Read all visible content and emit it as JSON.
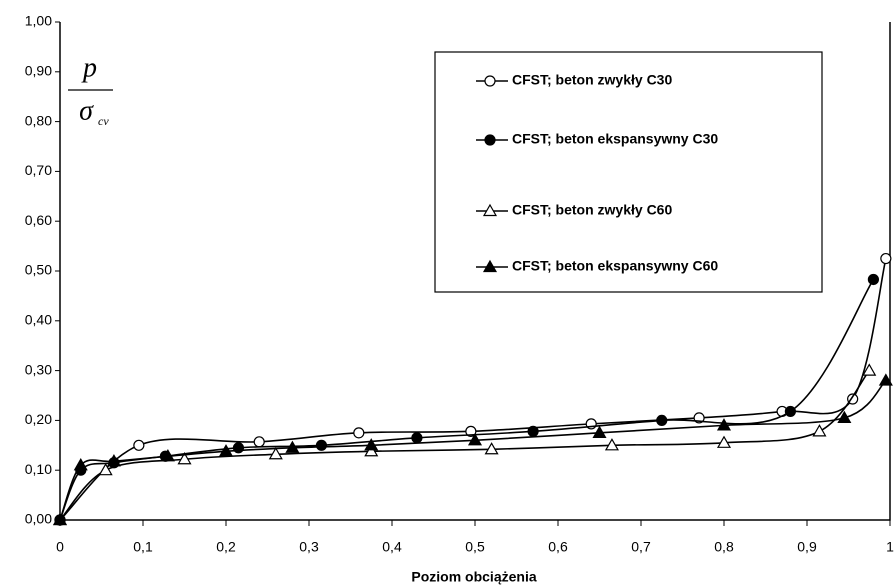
{
  "chart_data": {
    "type": "line",
    "x_label": "Poziom obciążenia",
    "y_label": {
      "numerator": "p",
      "denominator": "σ",
      "subscript": "cv"
    },
    "xlim": [
      0,
      1
    ],
    "ylim": [
      0,
      1
    ],
    "xticks": [
      0,
      {
        "value": 0.1,
        "label": "0,1"
      },
      {
        "value": 0.2,
        "label": "0,2"
      },
      {
        "value": 0.3,
        "label": "0,3"
      },
      {
        "value": 0.4,
        "label": "0,4"
      },
      {
        "value": 0.5,
        "label": "0,5"
      },
      {
        "value": 0.6,
        "label": "0,6"
      },
      {
        "value": 0.7,
        "label": "0,7"
      },
      {
        "value": 0.8,
        "label": "0,8"
      },
      {
        "value": 0.9,
        "label": "0,9"
      },
      1
    ],
    "yticks": [
      {
        "value": 0,
        "label": "0,00"
      },
      {
        "value": 0.1,
        "label": "0,10"
      },
      {
        "value": 0.2,
        "label": "0,20"
      },
      {
        "value": 0.3,
        "label": "0,30"
      },
      {
        "value": 0.4,
        "label": "0,40"
      },
      {
        "value": 0.5,
        "label": "0,50"
      },
      {
        "value": 0.6,
        "label": "0,60"
      },
      {
        "value": 0.7,
        "label": "0,70"
      },
      {
        "value": 0.8,
        "label": "0,80"
      },
      {
        "value": 0.9,
        "label": "0,90"
      },
      {
        "value": 1,
        "label": "1,00"
      }
    ],
    "series": [
      {
        "name": "CFST; beton zwykły C30",
        "color": "#000000",
        "marker": "circle-open",
        "x": [
          0,
          0.095,
          0.24,
          0.36,
          0.495,
          0.64,
          0.77,
          0.87,
          0.955,
          0.995
        ],
        "values": [
          0,
          0.15,
          0.157,
          0.175,
          0.178,
          0.193,
          0.205,
          0.218,
          0.243,
          0.525
        ]
      },
      {
        "name": "CFST; beton ekspansywny C30",
        "color": "#000000",
        "marker": "circle-filled",
        "x": [
          0,
          0.025,
          0.065,
          0.127,
          0.215,
          0.315,
          0.43,
          0.57,
          0.725,
          0.88,
          0.98
        ],
        "values": [
          0,
          0.1,
          0.115,
          0.128,
          0.145,
          0.15,
          0.165,
          0.178,
          0.2,
          0.218,
          0.483
        ]
      },
      {
        "name": "CFST; beton zwykły C60",
        "color": "#000000",
        "marker": "triangle-open",
        "x": [
          0,
          0.055,
          0.15,
          0.26,
          0.375,
          0.52,
          0.665,
          0.8,
          0.915,
          0.975
        ],
        "values": [
          0,
          0.1,
          0.122,
          0.132,
          0.138,
          0.142,
          0.15,
          0.155,
          0.178,
          0.3
        ]
      },
      {
        "name": "CFST; beton ekspansywny C60",
        "color": "#000000",
        "marker": "triangle-filled",
        "x": [
          0,
          0.025,
          0.065,
          0.13,
          0.2,
          0.28,
          0.375,
          0.5,
          0.65,
          0.8,
          0.945,
          0.995
        ],
        "values": [
          0,
          0.11,
          0.118,
          0.128,
          0.138,
          0.145,
          0.15,
          0.16,
          0.175,
          0.19,
          0.205,
          0.28
        ]
      }
    ]
  }
}
